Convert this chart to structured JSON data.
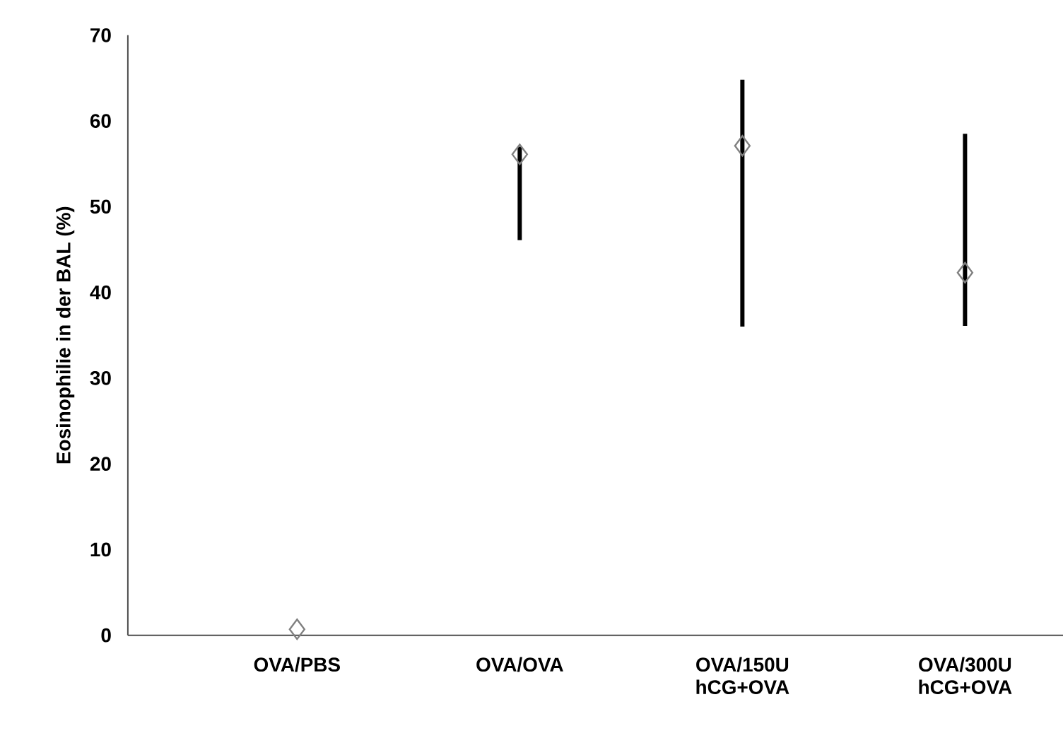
{
  "chart_data": {
    "type": "scatter",
    "ylabel": "Eosinophilie  in der BAL (%)",
    "categories": [
      "OVA/PBS",
      "OVA/OVA",
      "OVA/150U hCG+OVA",
      "OVA/300U hCG+OVA"
    ],
    "values": [
      0.7,
      56.1,
      57.1,
      42.3
    ],
    "errors": [
      null,
      [
        46.1,
        57.0
      ],
      [
        36.0,
        64.8
      ],
      [
        36.1,
        58.5
      ]
    ],
    "color": "#808080",
    "marker": "diamond",
    "ylim": [
      0,
      70
    ],
    "yticks": [
      0,
      10,
      20,
      30,
      40,
      50,
      60,
      70
    ]
  }
}
